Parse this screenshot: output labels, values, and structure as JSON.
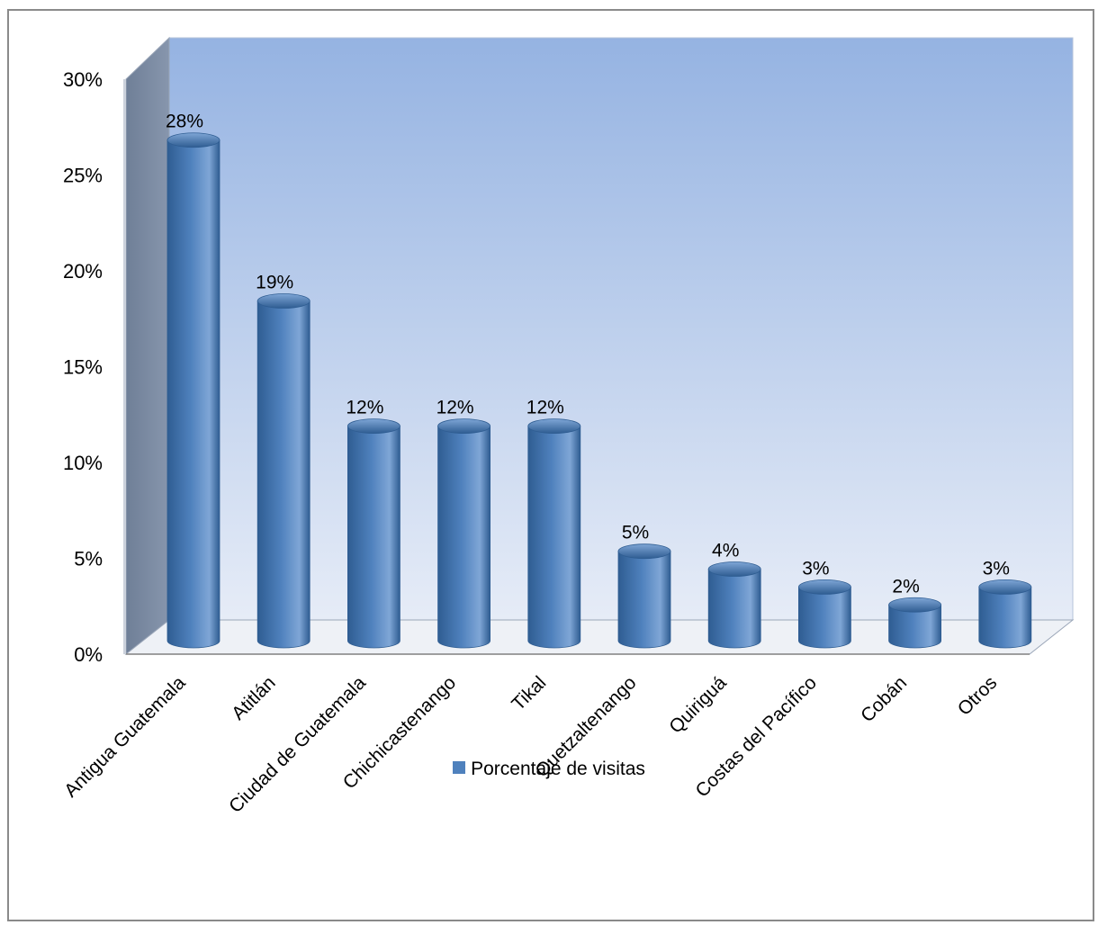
{
  "chart_data": {
    "type": "bar",
    "categories": [
      "Antigua Guatemala",
      "Atitlán",
      "Ciudad de Guatemala",
      "Chichicastenango",
      "Tikal",
      "Quetzaltenango",
      "Quiriguá",
      "Costas del Pacífico",
      "Cobán",
      "Otros"
    ],
    "series": [
      {
        "name": "Porcentaje de visitas",
        "values": [
          28,
          19,
          12,
          12,
          12,
          5,
          4,
          3,
          2,
          3
        ]
      }
    ],
    "data_labels": [
      "28%",
      "19%",
      "12%",
      "12%",
      "12%",
      "5%",
      "4%",
      "3%",
      "2%",
      "3%"
    ],
    "y_ticks": [
      "0%",
      "5%",
      "10%",
      "15%",
      "20%",
      "25%",
      "30%"
    ],
    "ylim": [
      0,
      30
    ],
    "grid": false,
    "legend_position": "bottom",
    "colors": {
      "bar": "#4f81bd",
      "bar_dark": "#2f5d92",
      "bar_light": "#7fa6d6",
      "wall_top": "#95b3e2",
      "wall_bottom": "#e6ecf7",
      "side_wall": "#6f7f97"
    }
  },
  "legend": {
    "label": "Porcentaje de visitas"
  }
}
